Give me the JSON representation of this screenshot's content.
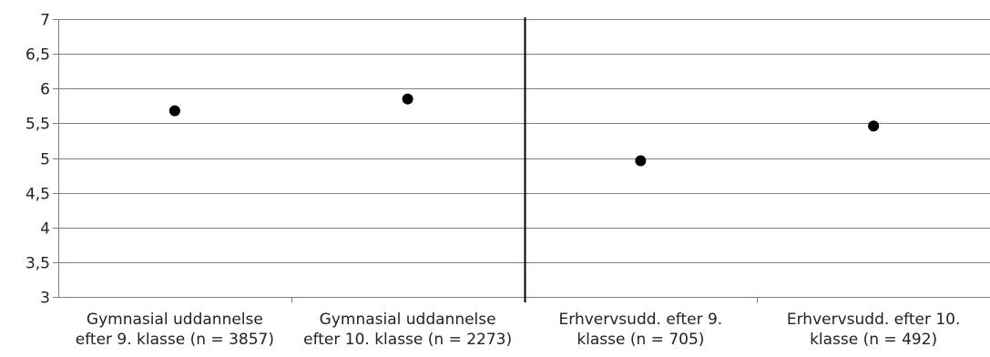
{
  "chart_data": {
    "type": "scatter",
    "title": "",
    "xlabel": "",
    "ylabel": "",
    "categories": [
      [
        "Gymnasial uddannelse",
        "efter 9. klasse (n = 3857)"
      ],
      [
        "Gymnasial uddannelse",
        "efter 10. klasse (n = 2273)"
      ],
      [
        "Erhvervsudd. efter 9.",
        "klasse (n = 705)"
      ],
      [
        "Erhvervsudd. efter 10.",
        "klasse (n = 492)"
      ]
    ],
    "values": [
      5.68,
      5.85,
      4.96,
      5.46
    ],
    "ylim": [
      3,
      7
    ],
    "yticks": [
      3,
      3.5,
      4,
      4.5,
      5,
      5.5,
      6,
      6.5,
      7
    ],
    "ytick_labels": [
      "3",
      "3,5",
      "4",
      "4,5",
      "5",
      "5,5",
      "6",
      "6,5",
      "7"
    ],
    "grid": true,
    "legend": "none",
    "divider_after_category": 2,
    "colors": {
      "point": "#000000",
      "grid": "#808080",
      "divider": "#000000",
      "text": "#222222"
    }
  }
}
